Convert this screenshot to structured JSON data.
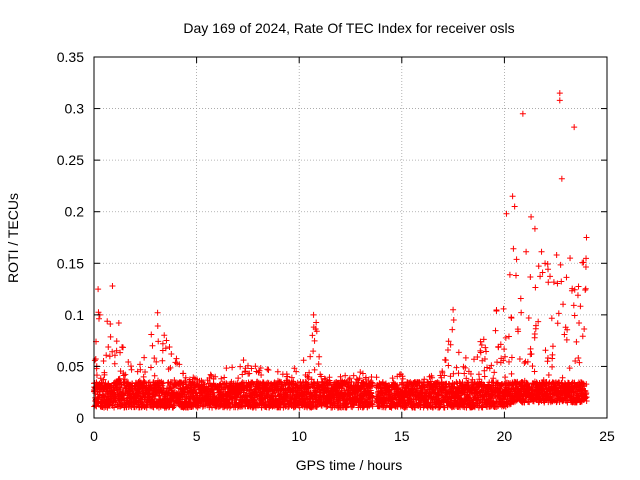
{
  "chart_data": {
    "type": "scatter",
    "title": "Day 169 of 2024, Rate Of TEC Index for receiver osls",
    "xlabel": "GPS time / hours",
    "ylabel": "ROTI / TECUs",
    "xlim": [
      0,
      25
    ],
    "ylim": [
      0,
      0.35
    ],
    "xticks": [
      0,
      5,
      10,
      15,
      20,
      25
    ],
    "xtick_labels": [
      "0",
      "5",
      "10",
      "15",
      "20",
      "25"
    ],
    "yticks": [
      0,
      0.05,
      0.1,
      0.15,
      0.2,
      0.25,
      0.3,
      0.35
    ],
    "ytick_labels": [
      "0",
      "0.05",
      "0.1",
      "0.15",
      "0.2",
      "0.25",
      "0.3",
      "0.35"
    ],
    "grid": true,
    "marker": "plus",
    "marker_color": "#ff0000",
    "series": [
      {
        "name": "ROTI",
        "color": "#ff0000",
        "envelope_hours": [
          0,
          0.3,
          0.6,
          1,
          1.5,
          2,
          2.5,
          3,
          3.5,
          4,
          4.5,
          5,
          6,
          7,
          8,
          9,
          10,
          10.5,
          10.8,
          11,
          12,
          13,
          13.5,
          13.7,
          14,
          14.5,
          15,
          16,
          17,
          17.5,
          18,
          18.5,
          19,
          19.5,
          20,
          20.5,
          21,
          21.5,
          22,
          22.5,
          23,
          23.5,
          24
        ],
        "envelope_roti_max": [
          0.06,
          0.12,
          0.1,
          0.12,
          0.06,
          0.05,
          0.07,
          0.1,
          0.08,
          0.06,
          0.04,
          0.04,
          0.045,
          0.06,
          0.05,
          0.045,
          0.05,
          0.07,
          0.1,
          0.06,
          0.045,
          0.045,
          0.045,
          0.05,
          0.05,
          0.04,
          0.045,
          0.04,
          0.05,
          0.1,
          0.06,
          0.065,
          0.08,
          0.1,
          0.14,
          0.2,
          0.17,
          0.19,
          0.15,
          0.16,
          0.14,
          0.13,
          0.17
        ],
        "envelope_roti_min": [
          0.01,
          0.01,
          0.01,
          0.01,
          0.01,
          0.01,
          0.01,
          0.01,
          0.01,
          0.01,
          0.01,
          0.01,
          0.01,
          0.01,
          0.01,
          0.01,
          0.01,
          0.01,
          0.01,
          0.01,
          0.01,
          0.01,
          0.01,
          0.01,
          0.01,
          0.01,
          0.01,
          0.01,
          0.01,
          0.01,
          0.01,
          0.01,
          0.01,
          0.01,
          0.01,
          0.015,
          0.015,
          0.015,
          0.015,
          0.015,
          0.015,
          0.015,
          0.015
        ],
        "data_gap_hours": [
          13.6,
          13.75
        ],
        "outliers": [
          {
            "x": 20.9,
            "y": 0.295
          },
          {
            "x": 22.7,
            "y": 0.315
          },
          {
            "x": 22.7,
            "y": 0.308
          },
          {
            "x": 23.4,
            "y": 0.282
          },
          {
            "x": 22.8,
            "y": 0.232
          },
          {
            "x": 20.4,
            "y": 0.215
          },
          {
            "x": 20.5,
            "y": 0.205
          },
          {
            "x": 20.1,
            "y": 0.198
          },
          {
            "x": 21.3,
            "y": 0.195
          },
          {
            "x": 24.0,
            "y": 0.175
          },
          {
            "x": 23.2,
            "y": 0.155
          },
          {
            "x": 0.2,
            "y": 0.125
          },
          {
            "x": 0.9,
            "y": 0.128
          },
          {
            "x": 3.1,
            "y": 0.102
          },
          {
            "x": 10.7,
            "y": 0.1
          },
          {
            "x": 17.5,
            "y": 0.105
          }
        ]
      }
    ]
  }
}
